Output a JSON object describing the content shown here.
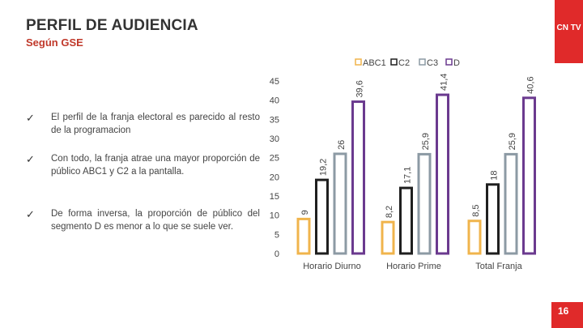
{
  "header": {
    "title": "PERFIL DE AUDIENCIA",
    "subtitle": "Según GSE",
    "logo": "CN TV"
  },
  "bullets": [
    "El perfil de la franja electoral es parecido al resto de la programacion",
    "Con todo, la franja atrae una mayor proporción de público ABC1 y C2 a la pantalla.",
    "De forma inversa, la proporción de público del segmento D es menor a lo que se suele ver."
  ],
  "page_number": "16",
  "colors": {
    "ABC1": "#f0b44c",
    "C2": "#1f1f1f",
    "C3": "#8c9aa4",
    "D": "#6b3a8f",
    "accent": "#e02a2a"
  },
  "chart_data": {
    "type": "bar",
    "title": "",
    "xlabel": "",
    "ylabel": "",
    "ylim": [
      0,
      45
    ],
    "y_ticks": [
      "0",
      "5",
      "10",
      "15",
      "20",
      "25",
      "30",
      "35",
      "40",
      "45"
    ],
    "categories": [
      "Horario Diurno",
      "Horario Prime",
      "Total Franja"
    ],
    "series": [
      {
        "name": "ABC1",
        "values": [
          9,
          8.2,
          8.5
        ],
        "labels": [
          "9",
          "8,2",
          "8,5"
        ]
      },
      {
        "name": "C2",
        "values": [
          19.2,
          17.1,
          18
        ],
        "labels": [
          "19,2",
          "17,1",
          "18"
        ]
      },
      {
        "name": "C3",
        "values": [
          26,
          25.9,
          25.9
        ],
        "labels": [
          "26",
          "25,9",
          "25,9"
        ]
      },
      {
        "name": "D",
        "values": [
          39.6,
          41.4,
          40.6
        ],
        "labels": [
          "39,6",
          "41,4",
          "40,6"
        ]
      }
    ],
    "legend_position": "top"
  }
}
